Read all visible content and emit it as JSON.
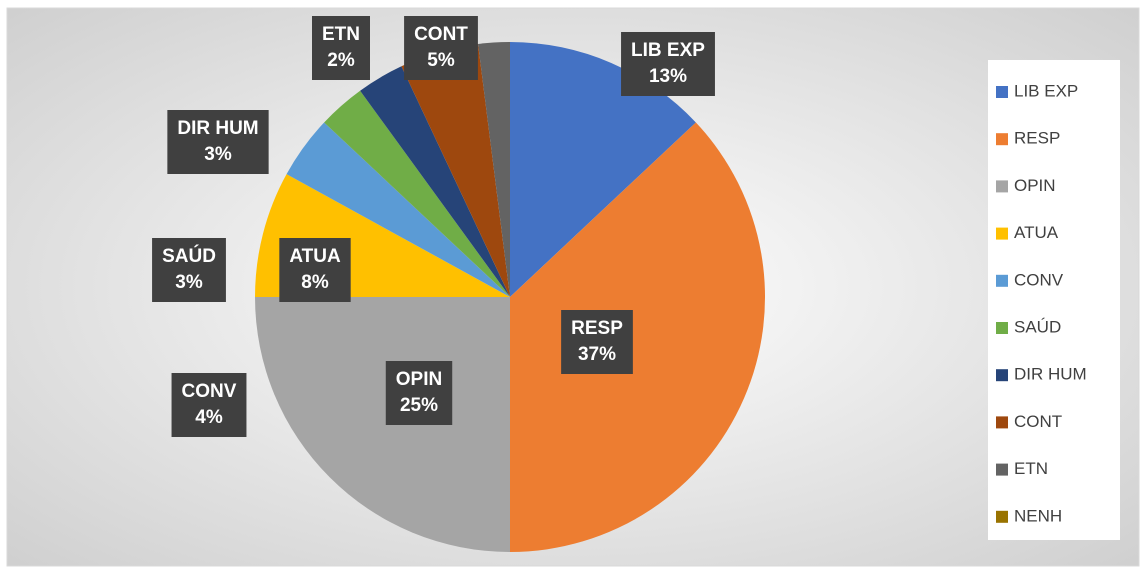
{
  "chart_data": {
    "type": "pie",
    "categories": [
      "LIB EXP",
      "RESP",
      "OPIN",
      "ATUA",
      "CONV",
      "SAÚD",
      "DIR HUM",
      "CONT",
      "ETN",
      "NENH"
    ],
    "values": [
      13,
      37,
      25,
      8,
      4,
      3,
      3,
      5,
      2,
      0
    ],
    "value_labels": [
      "13%",
      "37%",
      "25%",
      "8%",
      "4%",
      "3%",
      "3%",
      "5%",
      "2%",
      null
    ],
    "colors": [
      "#4472c4",
      "#ed7d31",
      "#a5a5a5",
      "#ffc000",
      "#5b9bd5",
      "#70ad47",
      "#264478",
      "#9e480e",
      "#636363",
      "#997300"
    ],
    "legend": "right"
  }
}
